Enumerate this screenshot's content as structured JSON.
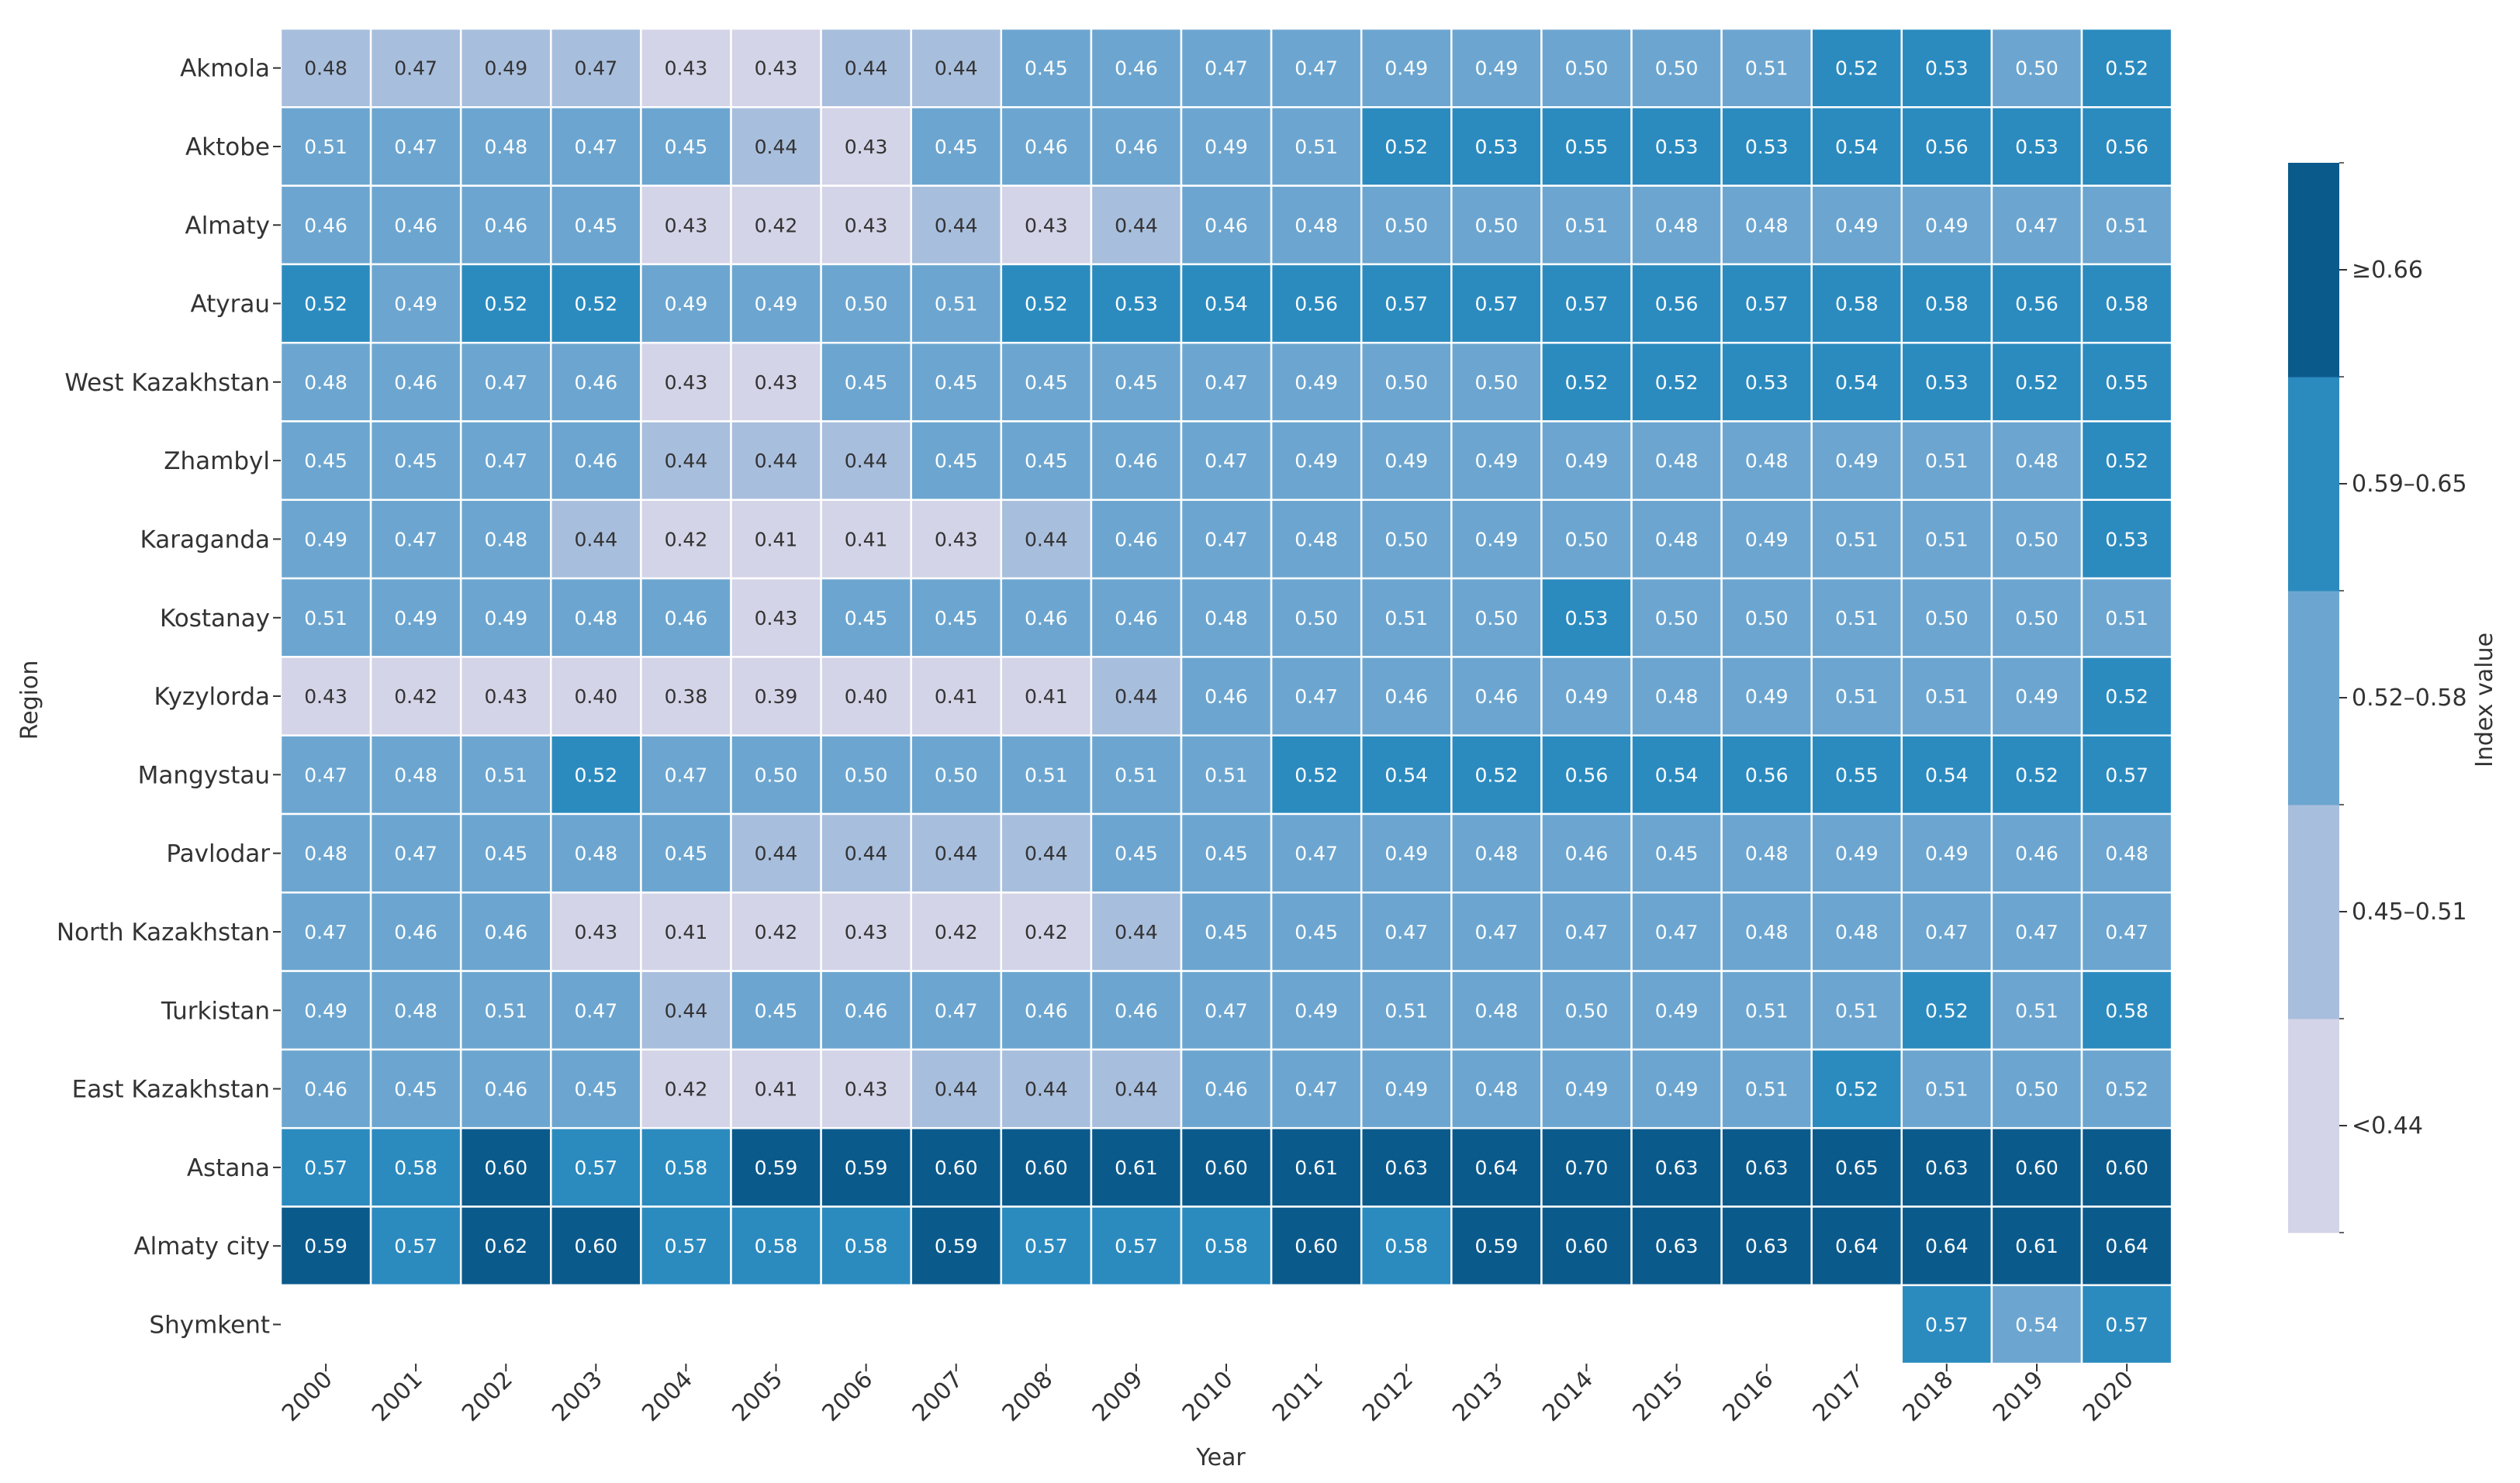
{
  "chart_data": {
    "type": "heatmap",
    "title": "",
    "xlabel": "Year",
    "ylabel": "Region",
    "x_categories": [
      "2000",
      "2001",
      "2002",
      "2003",
      "2004",
      "2005",
      "2006",
      "2007",
      "2008",
      "2009",
      "2010",
      "2011",
      "2012",
      "2013",
      "2014",
      "2015",
      "2016",
      "2017",
      "2018",
      "2019",
      "2020"
    ],
    "y_categories": [
      "Akmola",
      "Aktobe",
      "Almaty",
      "Atyrau",
      "West Kazakhstan",
      "Zhambyl",
      "Karaganda",
      "Kostanay",
      "Kyzylorda",
      "Mangystau",
      "Pavlodar",
      "North Kazakhstan",
      "Turkistan",
      "East Kazakhstan",
      "Astana",
      "Almaty city",
      "Shymkent"
    ],
    "values": [
      [
        "0.48",
        "0.47",
        "0.49",
        "0.47",
        "0.43",
        "0.43",
        "0.44",
        "0.44",
        "0.45",
        "0.46",
        "0.47",
        "0.47",
        "0.49",
        "0.49",
        "0.50",
        "0.50",
        "0.51",
        "0.52",
        "0.53",
        "0.50",
        "0.52"
      ],
      [
        "0.51",
        "0.47",
        "0.48",
        "0.47",
        "0.45",
        "0.44",
        "0.43",
        "0.45",
        "0.46",
        "0.46",
        "0.49",
        "0.51",
        "0.52",
        "0.53",
        "0.55",
        "0.53",
        "0.53",
        "0.54",
        "0.56",
        "0.53",
        "0.56"
      ],
      [
        "0.46",
        "0.46",
        "0.46",
        "0.45",
        "0.43",
        "0.42",
        "0.43",
        "0.44",
        "0.43",
        "0.44",
        "0.46",
        "0.48",
        "0.50",
        "0.50",
        "0.51",
        "0.48",
        "0.48",
        "0.49",
        "0.49",
        "0.47",
        "0.51"
      ],
      [
        "0.52",
        "0.49",
        "0.52",
        "0.52",
        "0.49",
        "0.49",
        "0.50",
        "0.51",
        "0.52",
        "0.53",
        "0.54",
        "0.56",
        "0.57",
        "0.57",
        "0.57",
        "0.56",
        "0.57",
        "0.58",
        "0.58",
        "0.56",
        "0.58"
      ],
      [
        "0.48",
        "0.46",
        "0.47",
        "0.46",
        "0.43",
        "0.43",
        "0.45",
        "0.45",
        "0.45",
        "0.45",
        "0.47",
        "0.49",
        "0.50",
        "0.50",
        "0.52",
        "0.52",
        "0.53",
        "0.54",
        "0.53",
        "0.52",
        "0.55"
      ],
      [
        "0.45",
        "0.45",
        "0.47",
        "0.46",
        "0.44",
        "0.44",
        "0.44",
        "0.45",
        "0.45",
        "0.46",
        "0.47",
        "0.49",
        "0.49",
        "0.49",
        "0.49",
        "0.48",
        "0.48",
        "0.49",
        "0.51",
        "0.48",
        "0.52"
      ],
      [
        "0.49",
        "0.47",
        "0.48",
        "0.44",
        "0.42",
        "0.41",
        "0.41",
        "0.43",
        "0.44",
        "0.46",
        "0.47",
        "0.48",
        "0.50",
        "0.49",
        "0.50",
        "0.48",
        "0.49",
        "0.51",
        "0.51",
        "0.50",
        "0.53"
      ],
      [
        "0.51",
        "0.49",
        "0.49",
        "0.48",
        "0.46",
        "0.43",
        "0.45",
        "0.45",
        "0.46",
        "0.46",
        "0.48",
        "0.50",
        "0.51",
        "0.50",
        "0.53",
        "0.50",
        "0.50",
        "0.51",
        "0.50",
        "0.50",
        "0.51"
      ],
      [
        "0.43",
        "0.42",
        "0.43",
        "0.40",
        "0.38",
        "0.39",
        "0.40",
        "0.41",
        "0.41",
        "0.44",
        "0.46",
        "0.47",
        "0.46",
        "0.46",
        "0.49",
        "0.48",
        "0.49",
        "0.51",
        "0.51",
        "0.49",
        "0.52"
      ],
      [
        "0.47",
        "0.48",
        "0.51",
        "0.52",
        "0.47",
        "0.50",
        "0.50",
        "0.50",
        "0.51",
        "0.51",
        "0.51",
        "0.52",
        "0.54",
        "0.52",
        "0.56",
        "0.54",
        "0.56",
        "0.55",
        "0.54",
        "0.52",
        "0.57"
      ],
      [
        "0.48",
        "0.47",
        "0.45",
        "0.48",
        "0.45",
        "0.44",
        "0.44",
        "0.44",
        "0.44",
        "0.45",
        "0.45",
        "0.47",
        "0.49",
        "0.48",
        "0.46",
        "0.45",
        "0.48",
        "0.49",
        "0.49",
        "0.46",
        "0.48"
      ],
      [
        "0.47",
        "0.46",
        "0.46",
        "0.43",
        "0.41",
        "0.42",
        "0.43",
        "0.42",
        "0.42",
        "0.44",
        "0.45",
        "0.45",
        "0.47",
        "0.47",
        "0.47",
        "0.47",
        "0.48",
        "0.48",
        "0.47",
        "0.47",
        "0.47"
      ],
      [
        "0.49",
        "0.48",
        "0.51",
        "0.47",
        "0.44",
        "0.45",
        "0.46",
        "0.47",
        "0.46",
        "0.46",
        "0.47",
        "0.49",
        "0.51",
        "0.48",
        "0.50",
        "0.49",
        "0.51",
        "0.51",
        "0.52",
        "0.51",
        "0.58"
      ],
      [
        "0.46",
        "0.45",
        "0.46",
        "0.45",
        "0.42",
        "0.41",
        "0.43",
        "0.44",
        "0.44",
        "0.44",
        "0.46",
        "0.47",
        "0.49",
        "0.48",
        "0.49",
        "0.49",
        "0.51",
        "0.52",
        "0.51",
        "0.50",
        "0.52"
      ],
      [
        "0.57",
        "0.58",
        "0.60",
        "0.57",
        "0.58",
        "0.59",
        "0.59",
        "0.60",
        "0.60",
        "0.61",
        "0.60",
        "0.61",
        "0.63",
        "0.64",
        "0.70",
        "0.63",
        "0.63",
        "0.65",
        "0.63",
        "0.60",
        "0.60"
      ],
      [
        "0.59",
        "0.57",
        "0.62",
        "0.60",
        "0.57",
        "0.58",
        "0.58",
        "0.59",
        "0.57",
        "0.57",
        "0.58",
        "0.60",
        "0.58",
        "0.59",
        "0.60",
        "0.63",
        "0.63",
        "0.64",
        "0.64",
        "0.61",
        "0.64"
      ],
      [
        null,
        null,
        null,
        null,
        null,
        null,
        null,
        null,
        null,
        null,
        null,
        null,
        null,
        null,
        null,
        null,
        null,
        null,
        "0.57",
        "0.54",
        "0.57"
      ]
    ],
    "colorbar": {
      "label": "Index value",
      "bins": [
        {
          "label": "<0.44",
          "color": "#d4d4e8"
        },
        {
          "label": "0.45–0.51",
          "color": "#a8bedd"
        },
        {
          "label": "0.52–0.58",
          "color": "#6ca6d0"
        },
        {
          "label": "0.59–0.65",
          "color": "#2b8bbf"
        },
        {
          "label": "≥0.66",
          "color": "#0b5a8c"
        }
      ]
    },
    "cell_colors": [
      [
        "#a8bedd",
        "#a8bedd",
        "#a8bedd",
        "#a8bedd",
        "#d4d4e8",
        "#d4d4e8",
        "#a8bedd",
        "#a8bedd",
        "#6ca6d0",
        "#6ca6d0",
        "#6ca6d0",
        "#6ca6d0",
        "#6ca6d0",
        "#6ca6d0",
        "#6ca6d0",
        "#6ca6d0",
        "#6ca6d0",
        "#2b8bbf",
        "#2b8bbf",
        "#6ca6d0",
        "#2b8bbf"
      ],
      [
        "#6ca6d0",
        "#6ca6d0",
        "#6ca6d0",
        "#6ca6d0",
        "#6ca6d0",
        "#a8bedd",
        "#d4d4e8",
        "#6ca6d0",
        "#6ca6d0",
        "#6ca6d0",
        "#6ca6d0",
        "#6ca6d0",
        "#2b8bbf",
        "#2b8bbf",
        "#2b8bbf",
        "#2b8bbf",
        "#2b8bbf",
        "#2b8bbf",
        "#2b8bbf",
        "#2b8bbf",
        "#2b8bbf"
      ],
      [
        "#6ca6d0",
        "#6ca6d0",
        "#6ca6d0",
        "#6ca6d0",
        "#d4d4e8",
        "#d4d4e8",
        "#d4d4e8",
        "#a8bedd",
        "#d4d4e8",
        "#a8bedd",
        "#6ca6d0",
        "#6ca6d0",
        "#6ca6d0",
        "#6ca6d0",
        "#6ca6d0",
        "#6ca6d0",
        "#6ca6d0",
        "#6ca6d0",
        "#6ca6d0",
        "#6ca6d0",
        "#6ca6d0"
      ],
      [
        "#2b8bbf",
        "#6ca6d0",
        "#2b8bbf",
        "#2b8bbf",
        "#6ca6d0",
        "#6ca6d0",
        "#6ca6d0",
        "#6ca6d0",
        "#2b8bbf",
        "#2b8bbf",
        "#2b8bbf",
        "#2b8bbf",
        "#2b8bbf",
        "#2b8bbf",
        "#2b8bbf",
        "#2b8bbf",
        "#2b8bbf",
        "#2b8bbf",
        "#2b8bbf",
        "#2b8bbf",
        "#2b8bbf"
      ],
      [
        "#6ca6d0",
        "#6ca6d0",
        "#6ca6d0",
        "#6ca6d0",
        "#d4d4e8",
        "#d4d4e8",
        "#6ca6d0",
        "#6ca6d0",
        "#6ca6d0",
        "#6ca6d0",
        "#6ca6d0",
        "#6ca6d0",
        "#6ca6d0",
        "#6ca6d0",
        "#2b8bbf",
        "#2b8bbf",
        "#2b8bbf",
        "#2b8bbf",
        "#2b8bbf",
        "#2b8bbf",
        "#2b8bbf"
      ],
      [
        "#6ca6d0",
        "#6ca6d0",
        "#6ca6d0",
        "#6ca6d0",
        "#a8bedd",
        "#a8bedd",
        "#a8bedd",
        "#6ca6d0",
        "#6ca6d0",
        "#6ca6d0",
        "#6ca6d0",
        "#6ca6d0",
        "#6ca6d0",
        "#6ca6d0",
        "#6ca6d0",
        "#6ca6d0",
        "#6ca6d0",
        "#6ca6d0",
        "#6ca6d0",
        "#6ca6d0",
        "#2b8bbf"
      ],
      [
        "#6ca6d0",
        "#6ca6d0",
        "#6ca6d0",
        "#a8bedd",
        "#d4d4e8",
        "#d4d4e8",
        "#d4d4e8",
        "#d4d4e8",
        "#a8bedd",
        "#6ca6d0",
        "#6ca6d0",
        "#6ca6d0",
        "#6ca6d0",
        "#6ca6d0",
        "#6ca6d0",
        "#6ca6d0",
        "#6ca6d0",
        "#6ca6d0",
        "#6ca6d0",
        "#6ca6d0",
        "#2b8bbf"
      ],
      [
        "#6ca6d0",
        "#6ca6d0",
        "#6ca6d0",
        "#6ca6d0",
        "#6ca6d0",
        "#d4d4e8",
        "#6ca6d0",
        "#6ca6d0",
        "#6ca6d0",
        "#6ca6d0",
        "#6ca6d0",
        "#6ca6d0",
        "#6ca6d0",
        "#6ca6d0",
        "#2b8bbf",
        "#6ca6d0",
        "#6ca6d0",
        "#6ca6d0",
        "#6ca6d0",
        "#6ca6d0",
        "#6ca6d0"
      ],
      [
        "#d4d4e8",
        "#d4d4e8",
        "#d4d4e8",
        "#d4d4e8",
        "#d4d4e8",
        "#d4d4e8",
        "#d4d4e8",
        "#d4d4e8",
        "#d4d4e8",
        "#a8bedd",
        "#6ca6d0",
        "#6ca6d0",
        "#6ca6d0",
        "#6ca6d0",
        "#6ca6d0",
        "#6ca6d0",
        "#6ca6d0",
        "#6ca6d0",
        "#6ca6d0",
        "#6ca6d0",
        "#2b8bbf"
      ],
      [
        "#6ca6d0",
        "#6ca6d0",
        "#6ca6d0",
        "#2b8bbf",
        "#6ca6d0",
        "#6ca6d0",
        "#6ca6d0",
        "#6ca6d0",
        "#6ca6d0",
        "#6ca6d0",
        "#6ca6d0",
        "#2b8bbf",
        "#2b8bbf",
        "#2b8bbf",
        "#2b8bbf",
        "#2b8bbf",
        "#2b8bbf",
        "#2b8bbf",
        "#2b8bbf",
        "#2b8bbf",
        "#2b8bbf"
      ],
      [
        "#6ca6d0",
        "#6ca6d0",
        "#6ca6d0",
        "#6ca6d0",
        "#6ca6d0",
        "#a8bedd",
        "#a8bedd",
        "#a8bedd",
        "#a8bedd",
        "#6ca6d0",
        "#6ca6d0",
        "#6ca6d0",
        "#6ca6d0",
        "#6ca6d0",
        "#6ca6d0",
        "#6ca6d0",
        "#6ca6d0",
        "#6ca6d0",
        "#6ca6d0",
        "#6ca6d0",
        "#6ca6d0"
      ],
      [
        "#6ca6d0",
        "#6ca6d0",
        "#6ca6d0",
        "#d4d4e8",
        "#d4d4e8",
        "#d4d4e8",
        "#d4d4e8",
        "#d4d4e8",
        "#d4d4e8",
        "#a8bedd",
        "#6ca6d0",
        "#6ca6d0",
        "#6ca6d0",
        "#6ca6d0",
        "#6ca6d0",
        "#6ca6d0",
        "#6ca6d0",
        "#6ca6d0",
        "#6ca6d0",
        "#6ca6d0",
        "#6ca6d0"
      ],
      [
        "#6ca6d0",
        "#6ca6d0",
        "#6ca6d0",
        "#6ca6d0",
        "#a8bedd",
        "#6ca6d0",
        "#6ca6d0",
        "#6ca6d0",
        "#6ca6d0",
        "#6ca6d0",
        "#6ca6d0",
        "#6ca6d0",
        "#6ca6d0",
        "#6ca6d0",
        "#6ca6d0",
        "#6ca6d0",
        "#6ca6d0",
        "#6ca6d0",
        "#2b8bbf",
        "#6ca6d0",
        "#2b8bbf"
      ],
      [
        "#6ca6d0",
        "#6ca6d0",
        "#6ca6d0",
        "#6ca6d0",
        "#d4d4e8",
        "#d4d4e8",
        "#d4d4e8",
        "#a8bedd",
        "#a8bedd",
        "#a8bedd",
        "#6ca6d0",
        "#6ca6d0",
        "#6ca6d0",
        "#6ca6d0",
        "#6ca6d0",
        "#6ca6d0",
        "#6ca6d0",
        "#2b8bbf",
        "#6ca6d0",
        "#6ca6d0",
        "#6ca6d0"
      ],
      [
        "#2b8bbf",
        "#2b8bbf",
        "#0b5a8c",
        "#2b8bbf",
        "#2b8bbf",
        "#0b5a8c",
        "#0b5a8c",
        "#0b5a8c",
        "#0b5a8c",
        "#0b5a8c",
        "#0b5a8c",
        "#0b5a8c",
        "#0b5a8c",
        "#0b5a8c",
        "#0b5a8c",
        "#0b5a8c",
        "#0b5a8c",
        "#0b5a8c",
        "#0b5a8c",
        "#0b5a8c",
        "#0b5a8c"
      ],
      [
        "#0b5a8c",
        "#2b8bbf",
        "#0b5a8c",
        "#0b5a8c",
        "#2b8bbf",
        "#2b8bbf",
        "#2b8bbf",
        "#0b5a8c",
        "#2b8bbf",
        "#2b8bbf",
        "#2b8bbf",
        "#0b5a8c",
        "#2b8bbf",
        "#0b5a8c",
        "#0b5a8c",
        "#0b5a8c",
        "#0b5a8c",
        "#0b5a8c",
        "#0b5a8c",
        "#0b5a8c",
        "#0b5a8c"
      ],
      [
        null,
        null,
        null,
        null,
        null,
        null,
        null,
        null,
        null,
        null,
        null,
        null,
        null,
        null,
        null,
        null,
        null,
        null,
        "#2b8bbf",
        "#6ca6d0",
        "#2b8bbf"
      ]
    ],
    "dark_text_colors": [
      "#d4d4e8",
      "#a8bedd"
    ],
    "text_color_dark": "#333333",
    "text_color_light": "#ffffff",
    "axis_color": "#333333"
  }
}
